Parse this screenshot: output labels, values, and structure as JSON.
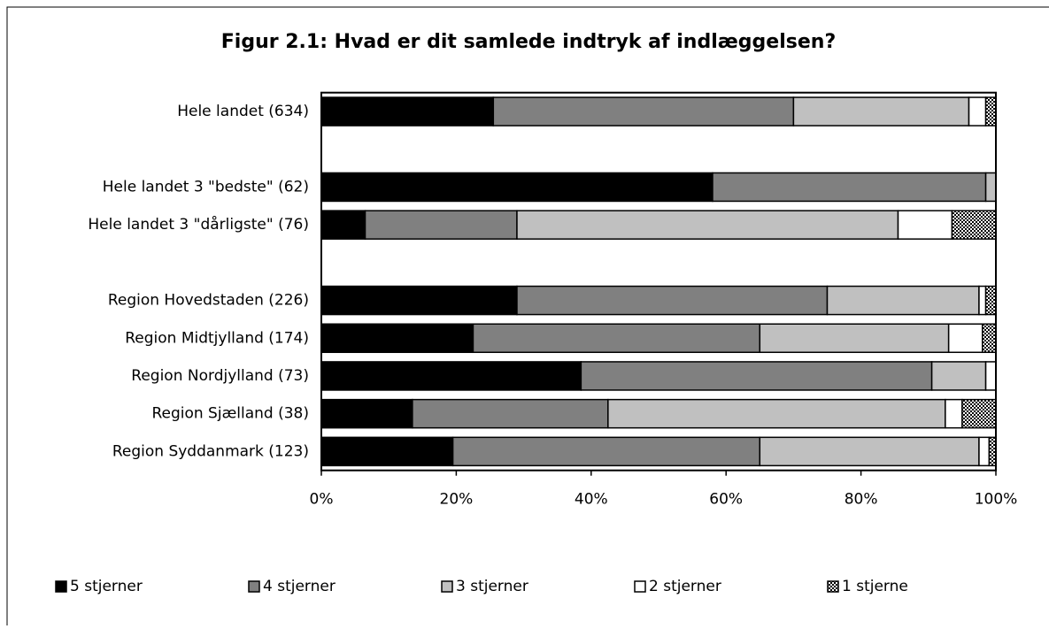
{
  "chart_data": {
    "type": "bar",
    "orientation": "horizontal",
    "stacked": true,
    "title": "Figur 2.1: Hvad er dit samlede indtryk af indlæggelsen?",
    "categories": [
      "Hele landet  (634)",
      null,
      "Hele landet 3 \"bedste\" (62)",
      "Hele landet 3 \"dårligste\" (76)",
      null,
      "Region Hovedstaden (226)",
      "Region Midtjylland (174)",
      "Region Nordjylland (73)",
      "Region Sjælland (38)",
      "Region Syddanmark (123)"
    ],
    "series": [
      {
        "name": "5 stjerner",
        "color": "#000000",
        "values": [
          25.5,
          null,
          58,
          6.5,
          null,
          29,
          22.5,
          38.5,
          13.5,
          19.5
        ]
      },
      {
        "name": "4 stjerner",
        "color": "#808080",
        "values": [
          44.5,
          null,
          40.5,
          22.5,
          null,
          46,
          42.5,
          52,
          29,
          45.5
        ]
      },
      {
        "name": "3 stjerner",
        "color": "#c0c0c0",
        "values": [
          26,
          null,
          1.5,
          56.5,
          null,
          22.5,
          28,
          8,
          50,
          32.5
        ]
      },
      {
        "name": "2 stjerner",
        "color": "#ffffff",
        "values": [
          2.5,
          null,
          0,
          8,
          null,
          1,
          5,
          1.5,
          2.5,
          1.5
        ]
      },
      {
        "name": "1 stjerne",
        "color": "#000000",
        "pattern": "checker",
        "values": [
          1.5,
          null,
          0,
          6.5,
          null,
          1.5,
          2,
          0,
          5,
          1
        ]
      }
    ],
    "xlim": [
      0,
      100
    ],
    "xticks": [
      {
        "value": 0,
        "label": "0%"
      },
      {
        "value": 20,
        "label": "20%"
      },
      {
        "value": 40,
        "label": "40%"
      },
      {
        "value": 60,
        "label": "60%"
      },
      {
        "value": 80,
        "label": "80%"
      },
      {
        "value": 100,
        "label": "100%"
      }
    ],
    "legend": "bottom"
  }
}
